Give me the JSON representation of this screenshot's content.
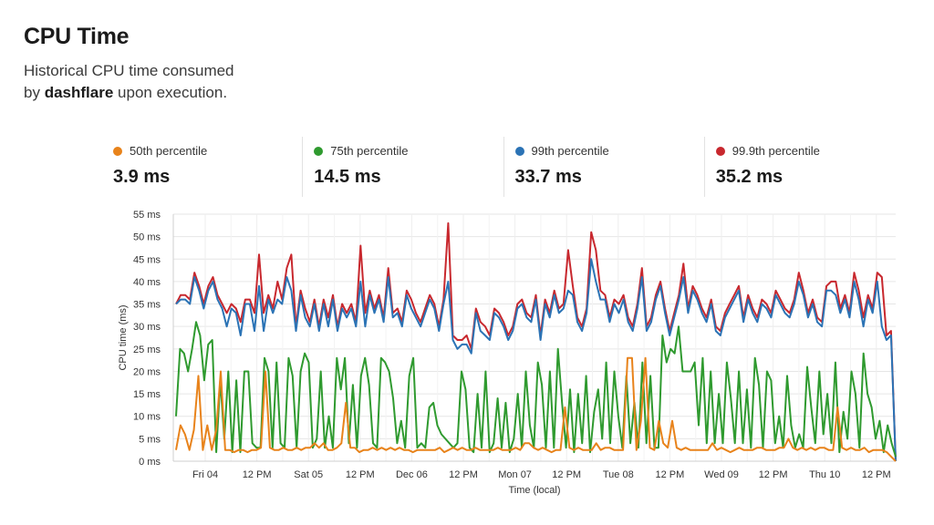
{
  "page": {
    "title": "CPU Time",
    "subtitle_line1": "Historical CPU time consumed",
    "subtitle_by": "by",
    "subtitle_name": "dashflare",
    "subtitle_rest": "upon execution."
  },
  "stats": [
    {
      "label": "50th percentile",
      "value": "3.9 ms",
      "color": "#e8831b"
    },
    {
      "label": "75th percentile",
      "value": "14.5 ms",
      "color": "#2f9a2f"
    },
    {
      "label": "99th percentile",
      "value": "33.7 ms",
      "color": "#2b73b5"
    },
    {
      "label": "99.9th percentile",
      "value": "35.2 ms",
      "color": "#c8282e"
    }
  ],
  "chart_data": {
    "type": "line",
    "xlabel": "Time (local)",
    "ylabel": "CPU time (ms)",
    "ylim": [
      0,
      55
    ],
    "yticks": [
      "0 ms",
      "5 ms",
      "10 ms",
      "15 ms",
      "20 ms",
      "25 ms",
      "30 ms",
      "35 ms",
      "40 ms",
      "45 ms",
      "50 ms",
      "55 ms"
    ],
    "xticks": [
      "Fri 04",
      "12 PM",
      "Sat 05",
      "12 PM",
      "Dec 06",
      "12 PM",
      "Mon 07",
      "12 PM",
      "Tue 08",
      "12 PM",
      "Wed 09",
      "12 PM",
      "Thu 10",
      "12 PM"
    ],
    "grid": true,
    "legend": "none",
    "series": [
      {
        "name": "99.9th percentile",
        "color": "#c8282e",
        "values": [
          35,
          37,
          37,
          36,
          42,
          39,
          35,
          39,
          41,
          37,
          35,
          33,
          35,
          34,
          31,
          36,
          36,
          33,
          46,
          33,
          37,
          34,
          40,
          36,
          43,
          46,
          30,
          38,
          34,
          31,
          36,
          30,
          36,
          32,
          37,
          30,
          35,
          33,
          35,
          31,
          48,
          33,
          38,
          34,
          37,
          32,
          43,
          33,
          34,
          31,
          38,
          36,
          33,
          31,
          34,
          37,
          35,
          30,
          36,
          53,
          28,
          27,
          27,
          28,
          25,
          34,
          31,
          30,
          28,
          34,
          33,
          31,
          28,
          30,
          35,
          36,
          33,
          32,
          37,
          28,
          36,
          33,
          38,
          34,
          35,
          47,
          39,
          32,
          30,
          34,
          51,
          47,
          38,
          37,
          32,
          36,
          35,
          37,
          32,
          30,
          35,
          43,
          30,
          32,
          37,
          40,
          34,
          29,
          33,
          37,
          44,
          34,
          39,
          37,
          34,
          32,
          36,
          30,
          29,
          33,
          35,
          37,
          39,
          32,
          37,
          34,
          32,
          36,
          35,
          33,
          38,
          36,
          34,
          33,
          36,
          42,
          38,
          33,
          36,
          32,
          31,
          39,
          40,
          40,
          34,
          37,
          33,
          42,
          38,
          32,
          37,
          34,
          42,
          41,
          28,
          29,
          0
        ]
      },
      {
        "name": "99th percentile",
        "color": "#2b73b5",
        "values": [
          35,
          36,
          36,
          35,
          41,
          38,
          34,
          38,
          40,
          36,
          34,
          30,
          34,
          33,
          28,
          35,
          35,
          29,
          39,
          29,
          36,
          33,
          36,
          35,
          41,
          38,
          29,
          37,
          32,
          30,
          35,
          29,
          35,
          30,
          36,
          29,
          34,
          32,
          34,
          30,
          40,
          30,
          37,
          33,
          36,
          31,
          41,
          32,
          33,
          30,
          37,
          34,
          32,
          30,
          33,
          36,
          34,
          29,
          35,
          40,
          27,
          25,
          26,
          26,
          24,
          33,
          29,
          28,
          27,
          33,
          32,
          30,
          27,
          29,
          34,
          35,
          32,
          31,
          36,
          27,
          35,
          32,
          37,
          33,
          34,
          38,
          37,
          31,
          29,
          33,
          45,
          40,
          36,
          36,
          31,
          35,
          33,
          36,
          31,
          29,
          34,
          41,
          29,
          31,
          36,
          39,
          33,
          28,
          32,
          36,
          41,
          33,
          38,
          36,
          33,
          31,
          35,
          29,
          28,
          32,
          34,
          36,
          38,
          31,
          36,
          33,
          31,
          35,
          34,
          32,
          37,
          35,
          33,
          32,
          35,
          40,
          37,
          32,
          35,
          31,
          30,
          38,
          38,
          37,
          33,
          36,
          32,
          40,
          36,
          30,
          36,
          33,
          40,
          30,
          27,
          28,
          0
        ]
      },
      {
        "name": "75th percentile",
        "color": "#2f9a2f",
        "values": [
          10,
          25,
          24,
          20,
          25,
          31,
          28,
          18,
          26,
          27,
          2,
          18,
          5,
          20,
          2,
          18,
          2,
          20,
          20,
          4,
          3,
          3,
          23,
          20,
          3,
          22,
          4,
          3,
          23,
          19,
          3,
          20,
          24,
          22,
          3,
          5,
          20,
          3,
          10,
          3,
          23,
          16,
          23,
          4,
          17,
          3,
          19,
          23,
          17,
          4,
          3,
          23,
          22,
          20,
          14,
          4,
          9,
          3,
          19,
          23,
          3,
          4,
          3,
          12,
          13,
          8,
          6,
          5,
          4,
          3,
          4,
          20,
          16,
          3,
          2,
          15,
          3,
          20,
          2,
          4,
          14,
          3,
          13,
          2,
          5,
          15,
          3,
          20,
          8,
          3,
          22,
          17,
          3,
          20,
          3,
          25,
          13,
          3,
          16,
          2,
          15,
          4,
          19,
          2,
          11,
          16,
          5,
          22,
          4,
          20,
          10,
          3,
          19,
          4,
          13,
          3,
          22,
          4,
          19,
          3,
          3,
          28,
          22,
          25,
          24,
          30,
          20,
          20,
          20,
          22,
          8,
          23,
          4,
          20,
          4,
          15,
          4,
          22,
          14,
          4,
          20,
          4,
          16,
          3,
          23,
          17,
          3,
          20,
          18,
          4,
          10,
          3,
          19,
          8,
          3,
          6,
          3,
          21,
          12,
          4,
          20,
          6,
          15,
          4,
          22,
          2,
          11,
          5,
          20,
          15,
          3,
          24,
          15,
          12,
          5,
          9,
          2,
          8,
          4,
          1
        ]
      },
      {
        "name": "50th percentile",
        "color": "#e8831b",
        "values": [
          2.5,
          8,
          6,
          2.5,
          7,
          19,
          2.5,
          8,
          2.5,
          7,
          20,
          2.5,
          2.5,
          2,
          2.5,
          2.5,
          2,
          2.5,
          2.5,
          3,
          20,
          3,
          2.5,
          2.5,
          3,
          2.5,
          2.5,
          3,
          2.5,
          3,
          3,
          4,
          3,
          4,
          2.5,
          2.5,
          3,
          4,
          13,
          3,
          3,
          2,
          2.5,
          2.5,
          3,
          2.5,
          3,
          2.5,
          3,
          2.5,
          3,
          2.5,
          2.5,
          2,
          2.5,
          2.5,
          2.5,
          2.5,
          2.5,
          3,
          2,
          2.5,
          3,
          2.5,
          3,
          2.5,
          2.5,
          3,
          2.5,
          2.5,
          2.5,
          2.5,
          3,
          2.5,
          2.5,
          2.5,
          3,
          2.5,
          4,
          4,
          3,
          2.5,
          3,
          2.5,
          2,
          2.5,
          2.5,
          12,
          3,
          2.5,
          3,
          2.5,
          2.5,
          2.5,
          4,
          2.5,
          3,
          3,
          2.5,
          2.5,
          2.5,
          23,
          23,
          2.5,
          9,
          23,
          3,
          2.5,
          9,
          4,
          3,
          9,
          3,
          2.5,
          3,
          2.5,
          2.5,
          2.5,
          2.5,
          2.5,
          4,
          2.5,
          3,
          2.5,
          2,
          2.5,
          3,
          2.5,
          2.5,
          2.5,
          3,
          3,
          2.5,
          2.5,
          2.5,
          3,
          3,
          5,
          3,
          2.5,
          3,
          2.5,
          3,
          2.5,
          3,
          3,
          2.5,
          2.5,
          12,
          3,
          2.5,
          3,
          2.5,
          2.5,
          3,
          2,
          2.5,
          2.5,
          2.5,
          2,
          1,
          0
        ]
      }
    ]
  }
}
